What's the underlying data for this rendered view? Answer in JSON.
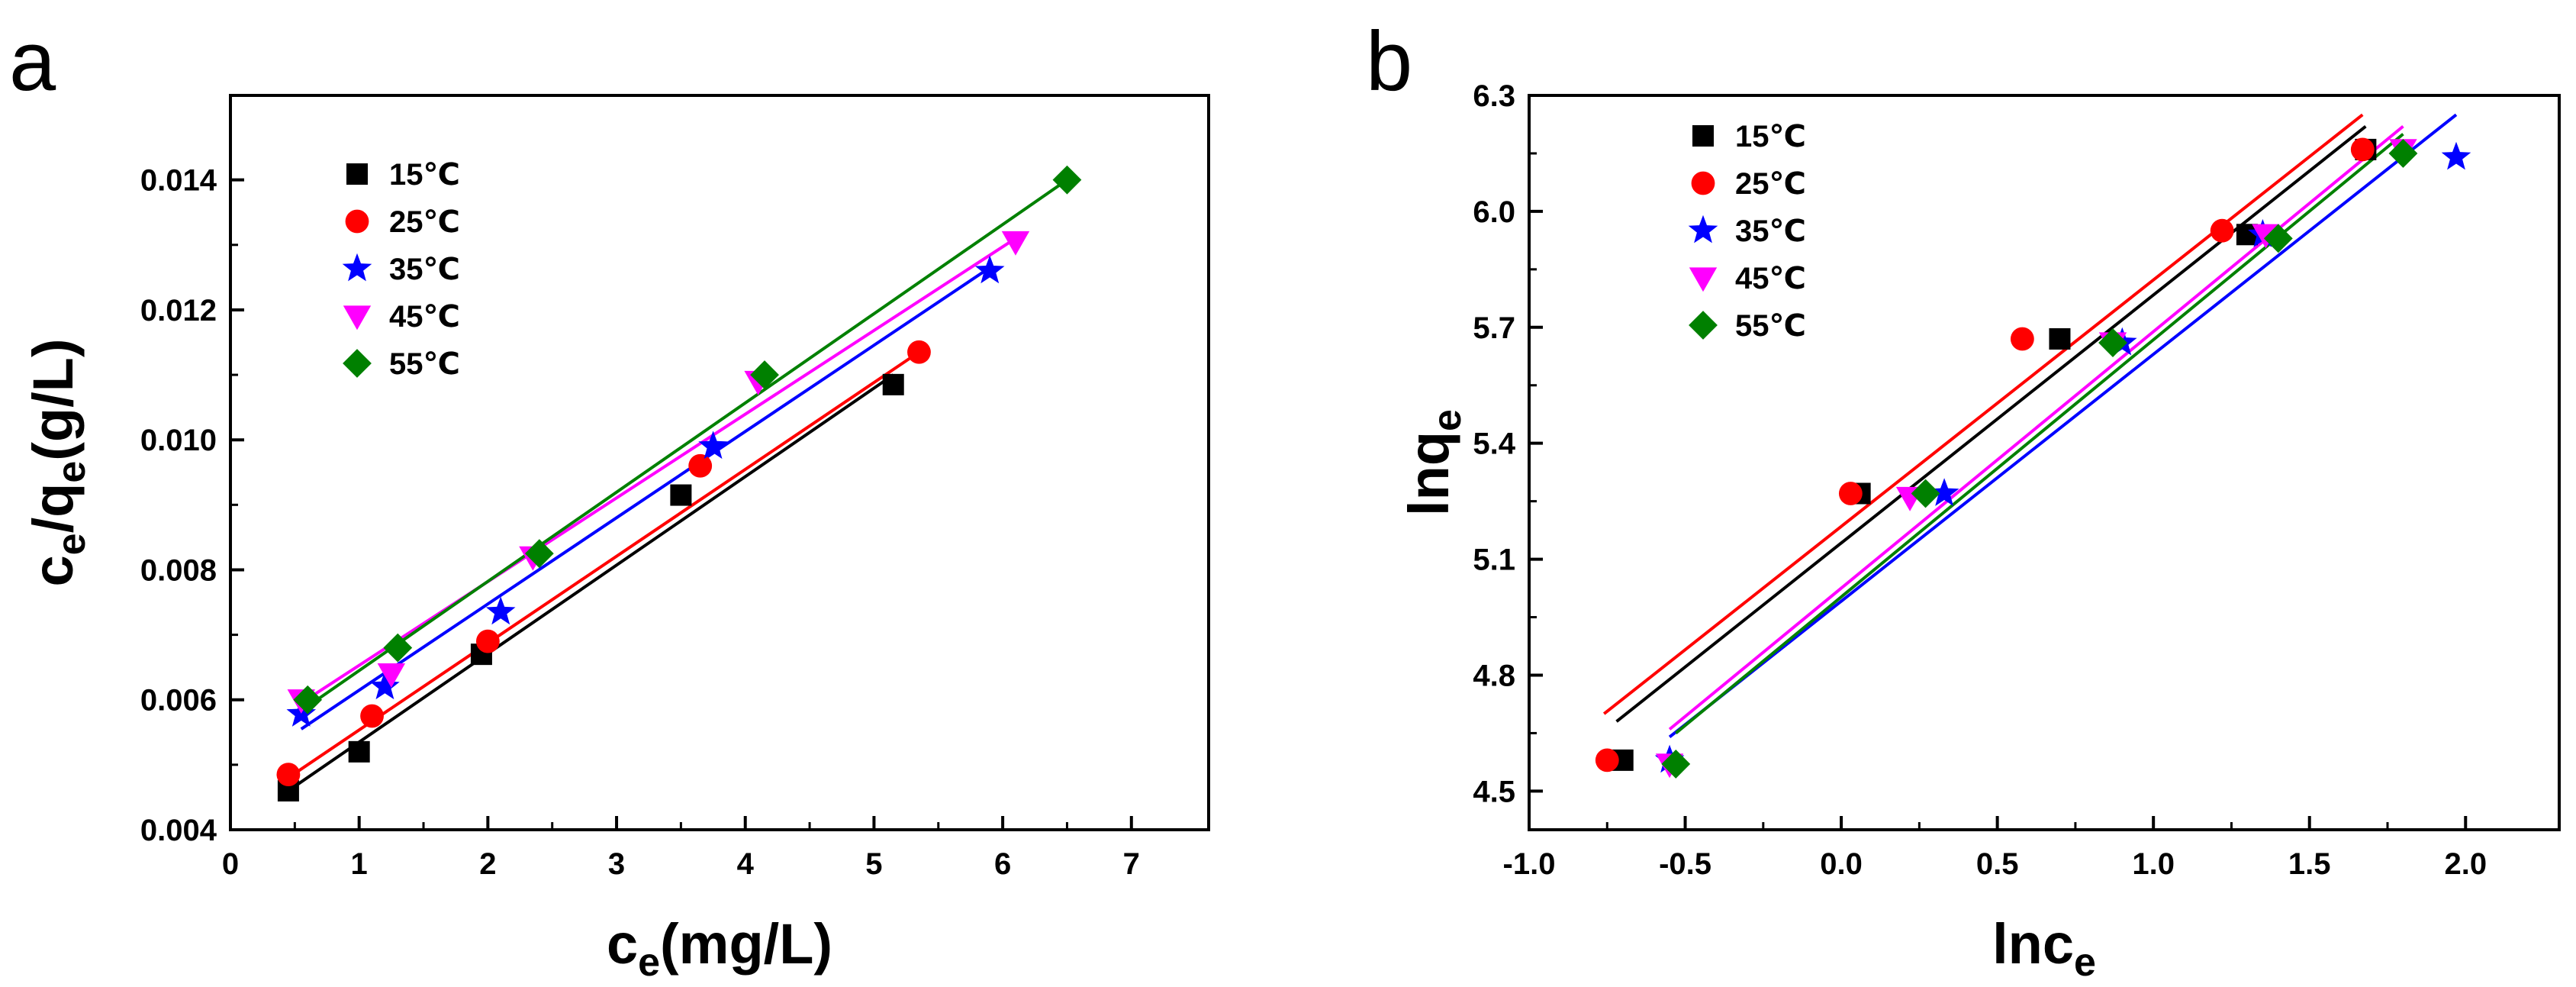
{
  "chart_data": [
    {
      "panel": "a",
      "type": "scatter",
      "title": "",
      "xlabel": {
        "main": "c",
        "sub": "e",
        "rest": "(mg/L)"
      },
      "ylabel": {
        "p1": "c",
        "s1": "e",
        "p2": "/q",
        "s2": "e",
        "p3": "(g/L)"
      },
      "xlim": [
        0,
        7.6
      ],
      "ylim": [
        0.004,
        0.0153
      ],
      "xticks": [
        0,
        1,
        2,
        3,
        4,
        5,
        6,
        7
      ],
      "xtick_labels": [
        "0",
        "1",
        "2",
        "3",
        "4",
        "5",
        "6",
        "7"
      ],
      "yticks": [
        0.004,
        0.006,
        0.008,
        0.01,
        0.012,
        0.014
      ],
      "ytick_labels": [
        "0.004",
        "0.006",
        "0.008",
        "0.010",
        "0.012",
        "0.014"
      ],
      "legend_position": "top-left",
      "series": [
        {
          "name": "15℃",
          "marker": "square",
          "color": "#000000",
          "x": [
            0.45,
            1.0,
            1.95,
            3.5,
            5.15
          ],
          "y": [
            0.0046,
            0.0052,
            0.0067,
            0.00915,
            0.01085
          ],
          "fit": {
            "x0": 0.45,
            "y0": 0.0046,
            "x1": 5.15,
            "y1": 0.011
          }
        },
        {
          "name": "25℃",
          "marker": "circle",
          "color": "#ff0000",
          "x": [
            0.45,
            1.1,
            2.0,
            3.65,
            5.35
          ],
          "y": [
            0.00485,
            0.00575,
            0.0069,
            0.0096,
            0.01135
          ],
          "fit": {
            "x0": 0.45,
            "y0": 0.0048,
            "x1": 5.35,
            "y1": 0.01135
          }
        },
        {
          "name": "35℃",
          "marker": "star",
          "color": "#0000ff",
          "x": [
            0.55,
            1.2,
            2.1,
            3.75,
            5.9
          ],
          "y": [
            0.00578,
            0.0062,
            0.00735,
            0.0099,
            0.0126
          ],
          "fit": {
            "x0": 0.55,
            "y0": 0.00555,
            "x1": 5.9,
            "y1": 0.01265
          }
        },
        {
          "name": "45℃",
          "marker": "triangle-down",
          "color": "#ff00ff",
          "x": [
            0.55,
            1.25,
            2.35,
            4.1,
            6.1
          ],
          "y": [
            0.006,
            0.0064,
            0.0082,
            0.0109,
            0.01305
          ],
          "fit": {
            "x0": 0.55,
            "y0": 0.00595,
            "x1": 6.1,
            "y1": 0.0131
          }
        },
        {
          "name": "55℃",
          "marker": "diamond",
          "color": "#008000",
          "x": [
            0.6,
            1.3,
            2.4,
            4.15,
            6.5
          ],
          "y": [
            0.006,
            0.0068,
            0.00825,
            0.011,
            0.014
          ],
          "fit": {
            "x0": 0.6,
            "y0": 0.0059,
            "x1": 6.5,
            "y1": 0.014
          }
        }
      ]
    },
    {
      "panel": "b",
      "type": "scatter",
      "title": "",
      "xlabel": {
        "main": "lnc",
        "sub": "e"
      },
      "ylabel": {
        "main": "lnq",
        "sub": "e"
      },
      "xlim": [
        -1.0,
        2.3
      ],
      "ylim": [
        4.4,
        6.3
      ],
      "xticks": [
        -1.0,
        -0.5,
        0.0,
        0.5,
        1.0,
        1.5,
        2.0
      ],
      "xtick_labels": [
        "-1.0",
        "-0.5",
        "0.0",
        "0.5",
        "1.0",
        "1.5",
        "2.0"
      ],
      "yticks": [
        4.5,
        4.8,
        5.1,
        5.4,
        5.7,
        6.0,
        6.3
      ],
      "ytick_labels": [
        "4.5",
        "4.8",
        "5.1",
        "5.4",
        "5.7",
        "6.0",
        "6.3"
      ],
      "legend_position": "top-left",
      "series": [
        {
          "name": "15℃",
          "marker": "square",
          "color": "#000000",
          "x": [
            -0.7,
            0.06,
            0.7,
            1.3,
            1.68
          ],
          "y": [
            4.58,
            5.27,
            5.67,
            5.94,
            6.16
          ],
          "fit": {
            "x0": -0.72,
            "y0": 4.68,
            "x1": 1.68,
            "y1": 6.22
          }
        },
        {
          "name": "25℃",
          "marker": "circle",
          "color": "#ff0000",
          "x": [
            -0.75,
            0.03,
            0.58,
            1.22,
            1.67
          ],
          "y": [
            4.58,
            5.27,
            5.67,
            5.95,
            6.16
          ],
          "fit": {
            "x0": -0.76,
            "y0": 4.7,
            "x1": 1.67,
            "y1": 6.25
          }
        },
        {
          "name": "35℃",
          "marker": "star",
          "color": "#0000ff",
          "x": [
            -0.55,
            0.33,
            0.9,
            1.35,
            1.97
          ],
          "y": [
            4.58,
            5.27,
            5.66,
            5.94,
            6.14
          ],
          "fit": {
            "x0": -0.55,
            "y0": 4.64,
            "x1": 1.97,
            "y1": 6.25
          }
        },
        {
          "name": "45℃",
          "marker": "triangle-down",
          "color": "#ff00ff",
          "x": [
            -0.55,
            0.22,
            0.87,
            1.36,
            1.8
          ],
          "y": [
            4.57,
            5.26,
            5.66,
            5.94,
            6.16
          ],
          "fit": {
            "x0": -0.55,
            "y0": 4.66,
            "x1": 1.8,
            "y1": 6.22
          }
        },
        {
          "name": "55℃",
          "marker": "diamond",
          "color": "#008000",
          "x": [
            -0.53,
            0.27,
            0.87,
            1.4,
            1.8
          ],
          "y": [
            4.57,
            5.27,
            5.66,
            5.93,
            6.15
          ],
          "fit": {
            "x0": -0.53,
            "y0": 4.65,
            "x1": 1.8,
            "y1": 6.2
          }
        }
      ]
    }
  ]
}
